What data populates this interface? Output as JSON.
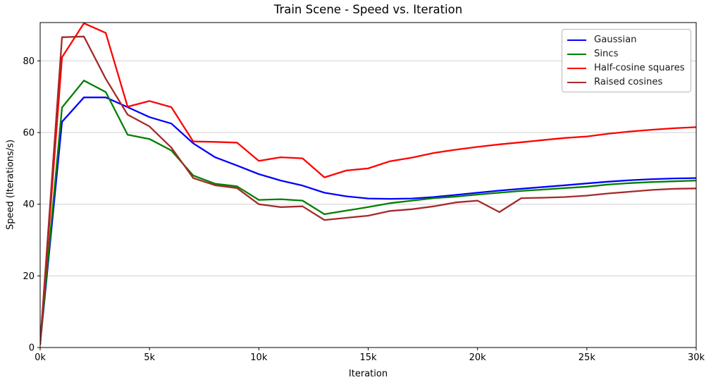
{
  "chart_data": {
    "type": "line",
    "title": "Train Scene - Speed vs. Iteration",
    "xlabel": "Iteration",
    "ylabel": "Speed (Iterations/s)",
    "xlim": [
      0,
      30000
    ],
    "ylim": [
      0,
      90.7
    ],
    "grid": "horizontal",
    "legend_position": "top-right",
    "grid_color": "#cfcfcf",
    "x": [
      0,
      1000,
      2000,
      3000,
      4000,
      5000,
      6000,
      7000,
      8000,
      9000,
      10000,
      11000,
      12000,
      13000,
      14000,
      15000,
      16000,
      17000,
      18000,
      19000,
      20000,
      21000,
      22000,
      23000,
      24000,
      25000,
      26000,
      27000,
      28000,
      29000,
      30000
    ],
    "xtick_values": [
      0,
      5000,
      10000,
      15000,
      20000,
      25000,
      30000
    ],
    "xtick_labels": [
      "0k",
      "5k",
      "10k",
      "15k",
      "20k",
      "25k",
      "30k"
    ],
    "ytick_values": [
      0,
      20,
      40,
      60,
      80
    ],
    "ytick_labels": [
      "0",
      "20",
      "40",
      "60",
      "80"
    ],
    "series": [
      {
        "name": "Gaussian",
        "color": "#0000ff",
        "values": [
          1,
          63,
          69.8,
          69.8,
          67.1,
          64.3,
          62.5,
          57.0,
          53.1,
          50.8,
          48.4,
          46.6,
          45.2,
          43.2,
          42.2,
          41.6,
          41.5,
          41.6,
          42.0,
          42.6,
          43.2,
          43.8,
          44.3,
          44.8,
          45.3,
          45.8,
          46.3,
          46.7,
          47.0,
          47.2,
          47.3
        ]
      },
      {
        "name": "Sincs",
        "color": "#008000",
        "values": [
          1,
          67,
          74.5,
          71.3,
          59.4,
          58.2,
          55.0,
          48.0,
          45.7,
          45.0,
          41.2,
          41.4,
          41.0,
          37.2,
          38.2,
          39.2,
          40.3,
          41.0,
          41.7,
          42.1,
          42.7,
          43.2,
          43.7,
          44.1,
          44.5,
          44.9,
          45.5,
          45.9,
          46.2,
          46.4,
          46.6
        ]
      },
      {
        "name": "Half-cosine squares",
        "color": "#ff0000",
        "values": [
          1,
          81,
          90.5,
          87.8,
          67.2,
          68.8,
          67.1,
          57.5,
          57.4,
          57.2,
          52.1,
          53.1,
          52.8,
          47.5,
          49.4,
          50.0,
          52.0,
          53.0,
          54.3,
          55.2,
          56.0,
          56.7,
          57.3,
          57.9,
          58.5,
          58.9,
          59.7,
          60.3,
          60.8,
          61.2,
          61.5
        ]
      },
      {
        "name": "Raised cosines",
        "color": "#a52a2a",
        "values": [
          1,
          86.6,
          86.8,
          75.0,
          65.0,
          61.7,
          55.8,
          47.3,
          45.3,
          44.5,
          40.0,
          39.2,
          39.4,
          35.6,
          36.2,
          36.8,
          38.1,
          38.6,
          39.4,
          40.5,
          41.0,
          37.8,
          41.7,
          41.8,
          42.0,
          42.4,
          43.0,
          43.5,
          44.0,
          44.3,
          44.4
        ]
      }
    ]
  }
}
